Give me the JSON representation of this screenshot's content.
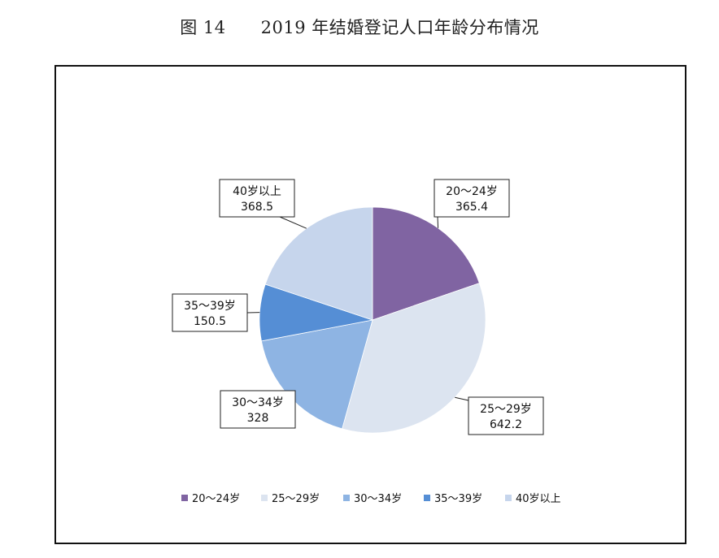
{
  "figure": {
    "title": "图 14      2019 年结婚登记人口年龄分布情况"
  },
  "chart_data": {
    "type": "pie",
    "categories": [
      "20～24岁",
      "25～29岁",
      "30～34岁",
      "35～39岁",
      "40岁以上"
    ],
    "values": [
      365.4,
      642.2,
      328,
      150.5,
      368.5
    ],
    "value_labels": [
      "365.4",
      "642.2",
      "328",
      "150.5",
      "368.5"
    ],
    "colors": [
      "#8064a2",
      "#dce4f0",
      "#8eb4e3",
      "#558ed5",
      "#c6d5ec"
    ],
    "start_angle_deg": 0,
    "direction": "clockwise",
    "legend_position": "bottom",
    "legend": [
      "20～24岁",
      "25～29岁",
      "30～34岁",
      "35～39岁",
      "40岁以上"
    ]
  }
}
